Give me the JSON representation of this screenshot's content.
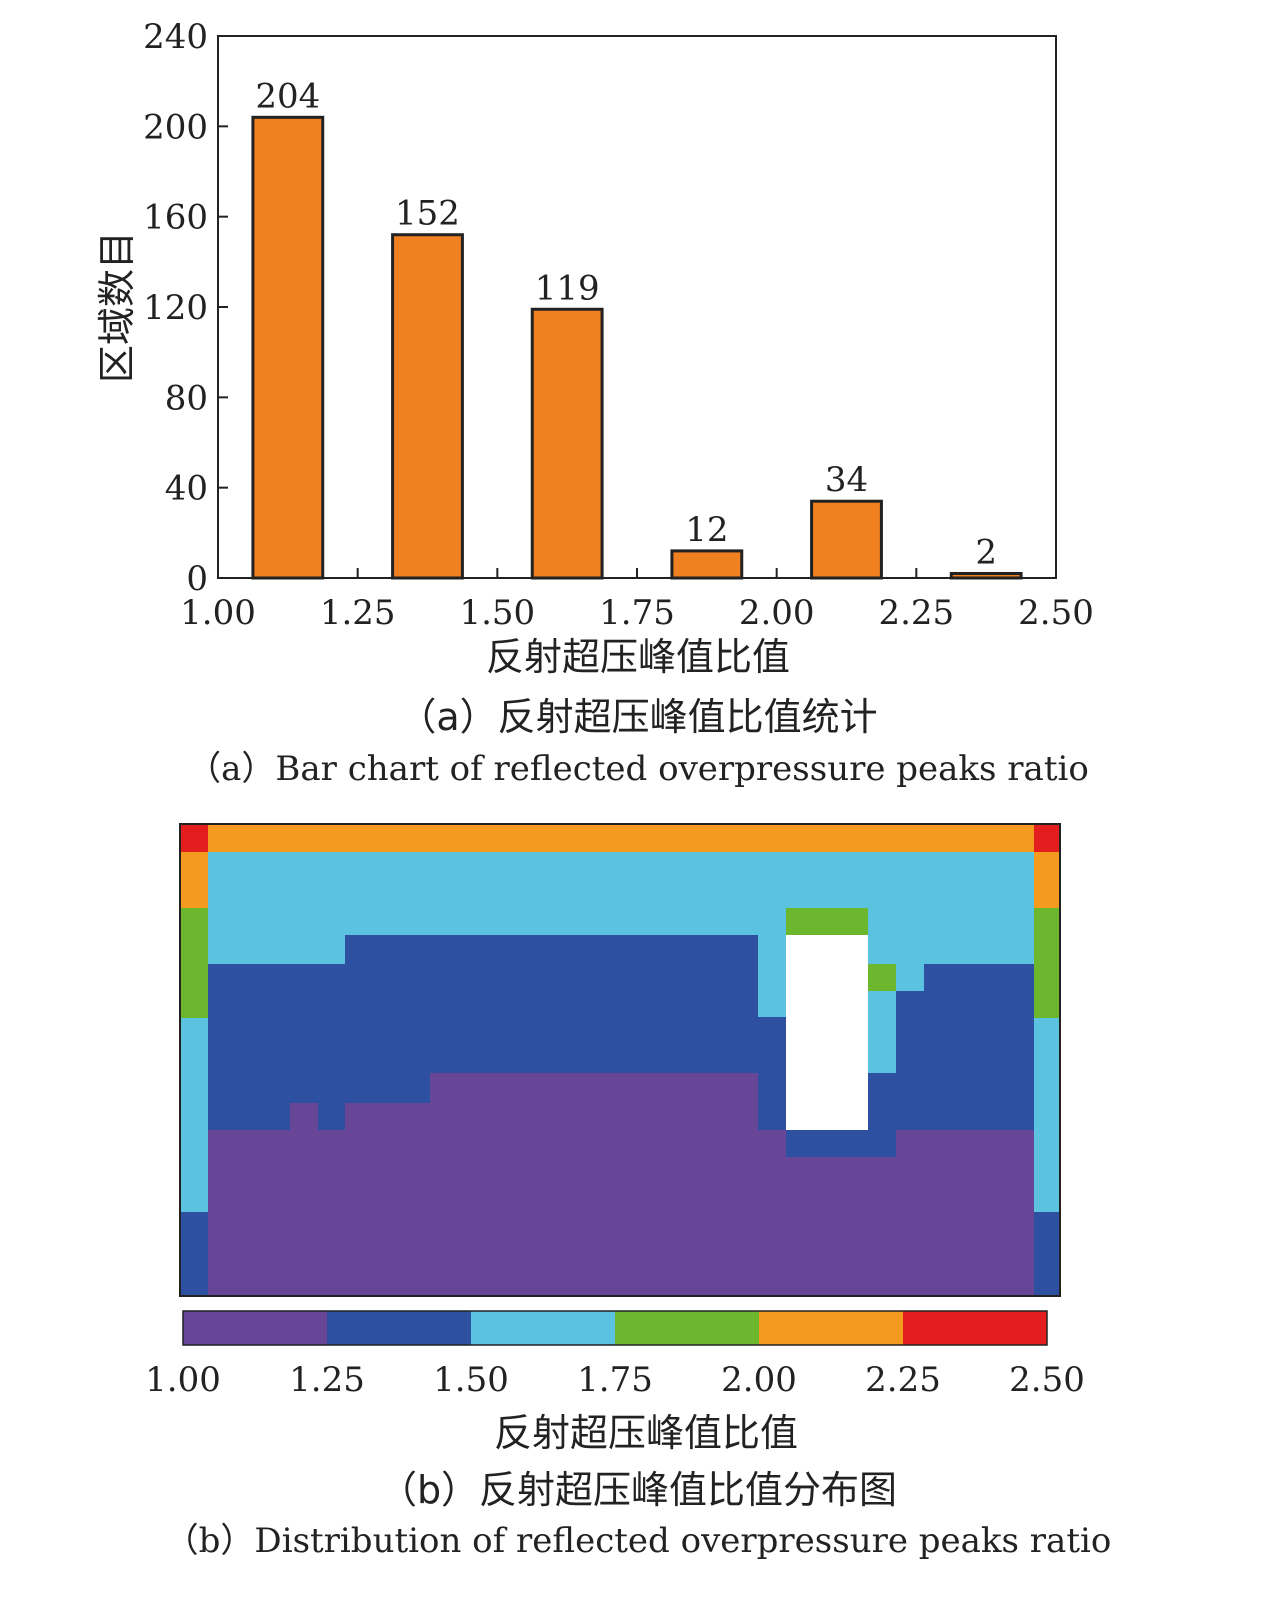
{
  "chart_data": [
    {
      "type": "bar",
      "x_bins": [
        [
          1.0625,
          1.1875
        ],
        [
          1.3125,
          1.4375
        ],
        [
          1.5625,
          1.6875
        ],
        [
          1.8125,
          1.9375
        ],
        [
          2.0625,
          2.1875
        ],
        [
          2.3125,
          2.4375
        ]
      ],
      "values": [
        204,
        152,
        119,
        12,
        34,
        2
      ],
      "data_labels": [
        "204",
        "152",
        "119",
        "12",
        "34",
        "2"
      ],
      "xlabel": "反射超压峰值比值",
      "ylabel": "区域数目",
      "xlim": [
        1.0,
        2.5
      ],
      "ylim": [
        0,
        240
      ],
      "xticks": [
        "1.00",
        "1.25",
        "1.50",
        "1.75",
        "2.00",
        "2.25",
        "2.50"
      ],
      "yticks": [
        "0",
        "40",
        "80",
        "120",
        "160",
        "200",
        "240"
      ],
      "bar_color": "#F08020",
      "caption_cn": "（a）反射超压峰值比值统计",
      "caption_en": "（a）Bar chart of reflected overpressure peaks ratio"
    },
    {
      "type": "heatmap",
      "colorbar": {
        "bins": [
          [
            1.0,
            1.25
          ],
          [
            1.25,
            1.5
          ],
          [
            1.5,
            1.75
          ],
          [
            1.75,
            2.0
          ],
          [
            2.0,
            2.25
          ],
          [
            2.25,
            2.5
          ]
        ],
        "colors": [
          "#674597",
          "#2D50A0",
          "#5BC3E0",
          "#6DB72F",
          "#F39A1F",
          "#E41E1E"
        ],
        "ticks": [
          "1.00",
          "1.25",
          "1.50",
          "1.75",
          "2.00",
          "2.25",
          "2.50"
        ],
        "label": "反射超压峰值比值"
      },
      "caption_cn": "（b）反射超压峰值比值分布图",
      "caption_en": "（b）Distribution of reflected overpressure peaks ratio"
    }
  ]
}
